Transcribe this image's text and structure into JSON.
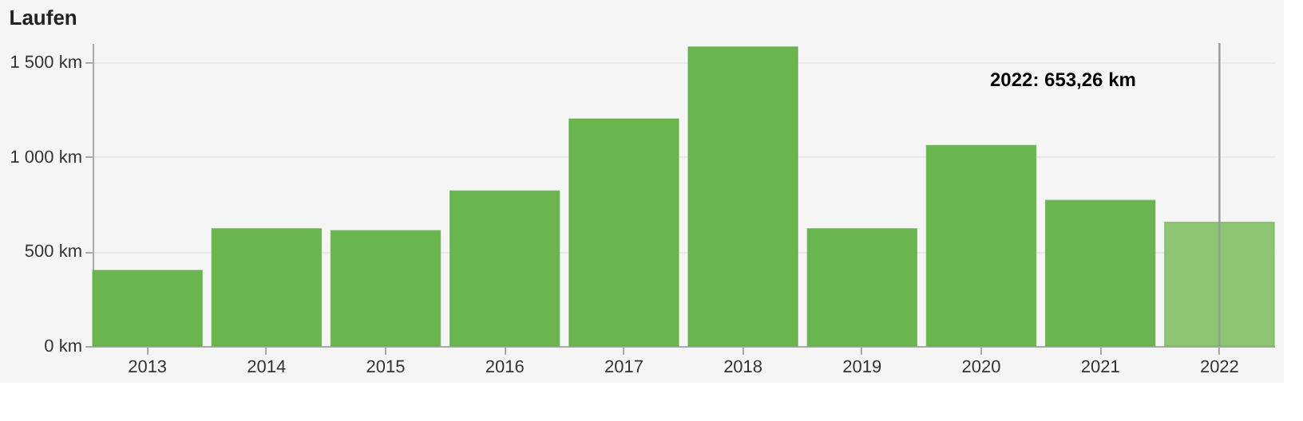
{
  "chart_data": {
    "type": "bar",
    "title": "Laufen",
    "categories": [
      "2013",
      "2014",
      "2015",
      "2016",
      "2017",
      "2018",
      "2019",
      "2020",
      "2021",
      "2022"
    ],
    "values": [
      400,
      620,
      610,
      820,
      1200,
      1580,
      620,
      1060,
      770,
      653.26
    ],
    "colors": [
      "#6ab54e",
      "#6ab54e",
      "#6ab54e",
      "#6ab54e",
      "#6ab54e",
      "#6ab54e",
      "#6ab54e",
      "#6ab54e",
      "#6ab54e",
      "#8cc675"
    ],
    "ylim": [
      0,
      1600
    ],
    "yticks": [
      {
        "value": 0,
        "label": "0 km"
      },
      {
        "value": 500,
        "label": "500 km"
      },
      {
        "value": 1000,
        "label": "1 000 km"
      },
      {
        "value": 1500,
        "label": "1 500 km"
      }
    ],
    "grid": "y",
    "ref_lines": [
      {
        "axis": "x",
        "value": "2022",
        "label": null,
        "color": "#999999"
      }
    ],
    "annotations": [
      "2022: 653,26 km"
    ]
  }
}
